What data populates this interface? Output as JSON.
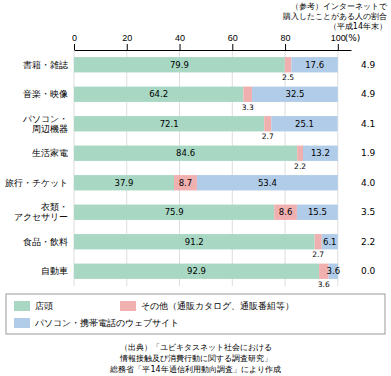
{
  "chart_data": {
    "type": "bar",
    "orientation": "horizontal",
    "stacked": true,
    "data_labels": true,
    "grid": true,
    "xlabel": "(%)",
    "categories": [
      "書籍・雑誌",
      "音楽・映像",
      "パソコン・\n周辺機器",
      "生活家電",
      "旅行・チケット",
      "衣類・\nアクセサリー",
      "食品・飲料",
      "自動車"
    ],
    "series": [
      {
        "name": "店頭",
        "color": "#a8d8c4",
        "values": [
          79.9,
          64.2,
          72.1,
          84.6,
          37.9,
          75.9,
          91.2,
          92.9
        ]
      },
      {
        "name": "その他（通販カタログ、通販番組等）",
        "color": "#f0b0b0",
        "values": [
          2.5,
          3.3,
          2.7,
          2.2,
          8.7,
          8.6,
          2.7,
          3.6
        ]
      },
      {
        "name": "パソコン・携帯電話のウェブサイト",
        "color": "#b0cce8",
        "values": [
          17.6,
          32.5,
          25.1,
          13.2,
          53.4,
          15.5,
          6.1,
          3.6
        ]
      }
    ],
    "xlim": [
      0,
      105
    ],
    "xticks": [
      0,
      20,
      40,
      60,
      80,
      100
    ],
    "internet_ratio": {
      "name": "（参考）インターネットで\n購入したことがある人の割合\n（平成14年末）",
      "values": [
        4.9,
        4.9,
        4.1,
        1.9,
        4.0,
        3.5,
        2.2,
        0.0
      ],
      "value_labels": [
        "4.9",
        "4.9",
        "4.1",
        "1.9",
        "4.0",
        "3.5",
        "2.2",
        "0.0"
      ]
    },
    "annotations": [
      "（出典）「ユビキタスネット社会における",
      "情報接触及び消費行動に関する調査研究」",
      "総務省「平14年通信利用動向調査」により作成"
    ]
  }
}
